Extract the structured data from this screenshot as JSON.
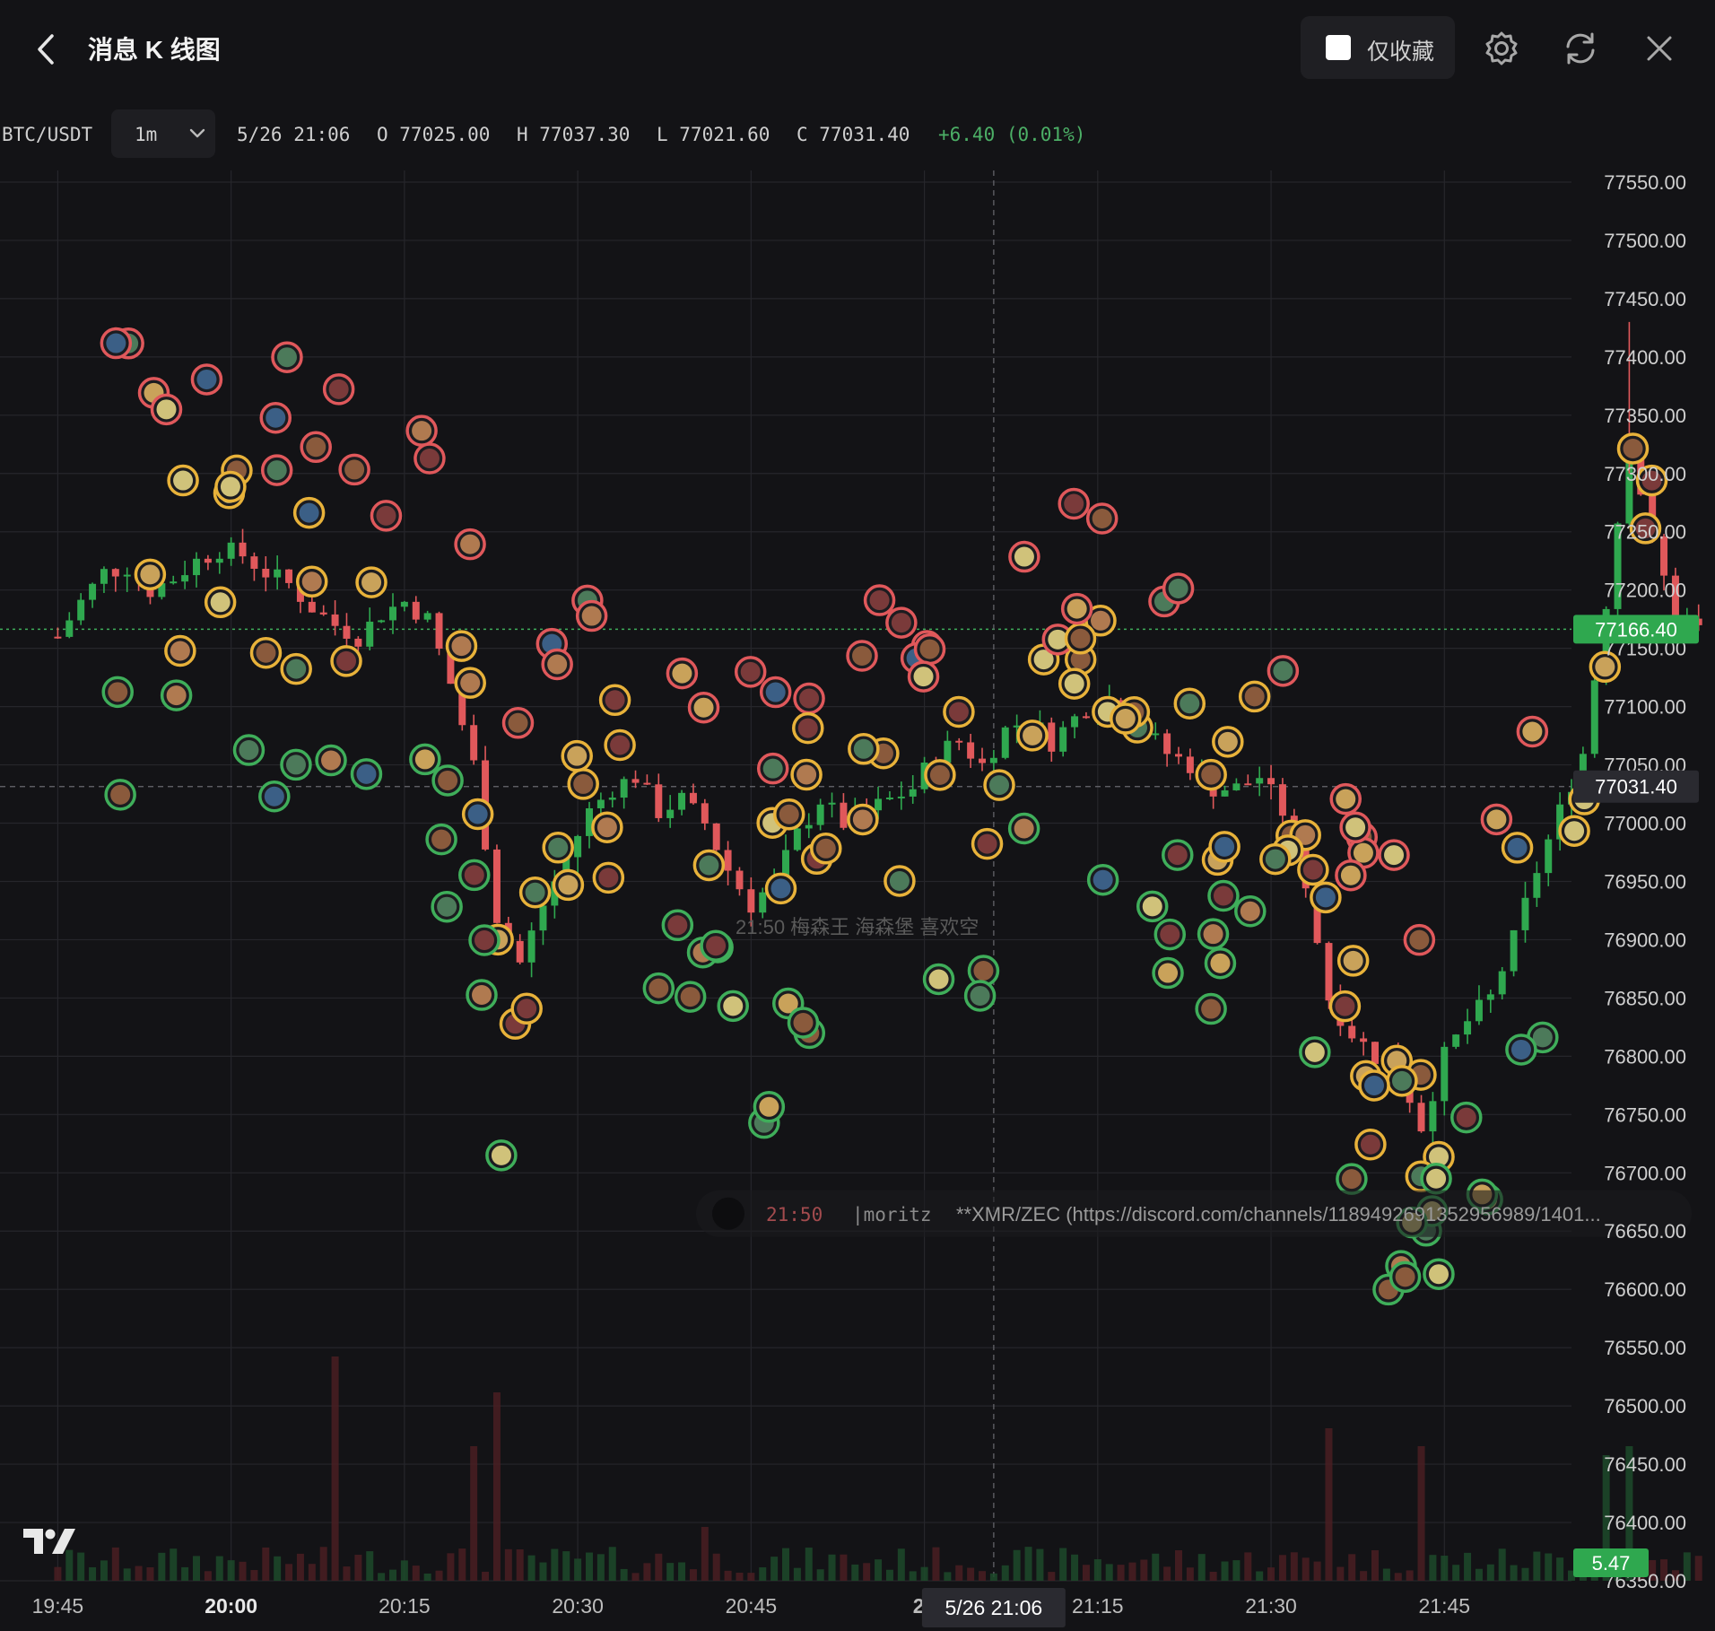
{
  "header": {
    "title": "消息 K 线图",
    "favorites_only_label": "仅收藏",
    "icons": [
      "back-chevron-icon",
      "gear-icon",
      "refresh-icon",
      "close-icon"
    ]
  },
  "ohlc_bar": {
    "pair": "BTC/USDT",
    "interval": "1m",
    "datetime": "5/26 21:06",
    "open": "O 77025.00",
    "high": "H 77037.30",
    "low": "L 77021.60",
    "close": "C 77031.40",
    "change": "+6.40 (0.01%)"
  },
  "message_overlay_1": {
    "time": "21:50",
    "user": "|moritz",
    "text": "**XMR/ZEC (https://discord.com/channels/1189492691352956989/1401..."
  },
  "message_overlay_2": {
    "text": "21:50 梅森王 海森堡 喜欢空"
  },
  "colors": {
    "background": "#131316",
    "up": "#2fa84f",
    "down": "#e0585b",
    "grid": "#26262b",
    "price_tag": "#2fa84f",
    "crosshair_tag": "#2a2a30"
  },
  "chart_data": {
    "type": "candlestick",
    "pair": "BTC/USDT",
    "interval": "1m",
    "y_ticks": [
      "77550.00",
      "77500.00",
      "77450.00",
      "77400.00",
      "77350.00",
      "77300.00",
      "77250.00",
      "77200.00",
      "77150.00",
      "77100.00",
      "77050.00",
      "77000.00",
      "76950.00",
      "76900.00",
      "76850.00",
      "76800.00",
      "76750.00",
      "76700.00",
      "76650.00",
      "76600.00",
      "76550.00",
      "76500.00",
      "76450.00",
      "76400.00",
      "76350.00"
    ],
    "y_range": [
      76350,
      77560
    ],
    "x_ticks": [
      "19:45",
      "20:00",
      "20:15",
      "20:30",
      "20:45",
      "21",
      "21:15",
      "21:30",
      "21:45"
    ],
    "x_range_minutes": [
      -5,
      131
    ],
    "last_price": "77166.40",
    "crosshair_price": "77031.40",
    "crosshair_time": "5/26 21:06",
    "volume_tag": "5.47",
    "price_path": [
      [
        0,
        77160
      ],
      [
        2,
        77190
      ],
      [
        4,
        77215
      ],
      [
        6,
        77220
      ],
      [
        8,
        77200
      ],
      [
        10,
        77210
      ],
      [
        12,
        77225
      ],
      [
        14,
        77235
      ],
      [
        16,
        77230
      ],
      [
        18,
        77215
      ],
      [
        20,
        77205
      ],
      [
        22,
        77185
      ],
      [
        24,
        77170
      ],
      [
        26,
        77160
      ],
      [
        28,
        77180
      ],
      [
        30,
        77190
      ],
      [
        32,
        77175
      ],
      [
        34,
        77120
      ],
      [
        36,
        77050
      ],
      [
        38,
        76920
      ],
      [
        40,
        76880
      ],
      [
        42,
        76930
      ],
      [
        44,
        76970
      ],
      [
        46,
        77010
      ],
      [
        48,
        77030
      ],
      [
        50,
        77040
      ],
      [
        52,
        77010
      ],
      [
        54,
        77020
      ],
      [
        56,
        77000
      ],
      [
        58,
        76960
      ],
      [
        60,
        76930
      ],
      [
        62,
        76950
      ],
      [
        64,
        76990
      ],
      [
        66,
        77020
      ],
      [
        68,
        77000
      ],
      [
        70,
        77010
      ],
      [
        72,
        77020
      ],
      [
        74,
        77030
      ],
      [
        76,
        77060
      ],
      [
        78,
        77070
      ],
      [
        80,
        77050
      ],
      [
        82,
        77080
      ],
      [
        84,
        77090
      ],
      [
        86,
        77070
      ],
      [
        88,
        77090
      ],
      [
        90,
        77110
      ],
      [
        92,
        77100
      ],
      [
        94,
        77080
      ],
      [
        96,
        77060
      ],
      [
        98,
        77050
      ],
      [
        100,
        77030
      ],
      [
        102,
        77030
      ],
      [
        104,
        77040
      ],
      [
        106,
        77010
      ],
      [
        108,
        76950
      ],
      [
        110,
        76850
      ],
      [
        112,
        76820
      ],
      [
        114,
        76800
      ],
      [
        116,
        76790
      ],
      [
        118,
        76740
      ],
      [
        120,
        76800
      ],
      [
        122,
        76830
      ],
      [
        124,
        76850
      ],
      [
        126,
        76900
      ],
      [
        128,
        76960
      ],
      [
        130,
        77010
      ],
      [
        132,
        77060
      ],
      [
        134,
        77190
      ],
      [
        136,
        77330
      ],
      [
        138,
        77240
      ],
      [
        140,
        77180
      ],
      [
        142,
        77166
      ]
    ],
    "volume_peaks": [
      [
        24,
        250
      ],
      [
        36,
        150
      ],
      [
        38,
        210
      ],
      [
        56,
        60
      ],
      [
        110,
        170
      ],
      [
        118,
        150
      ],
      [
        134,
        140
      ],
      [
        136,
        150
      ]
    ]
  }
}
